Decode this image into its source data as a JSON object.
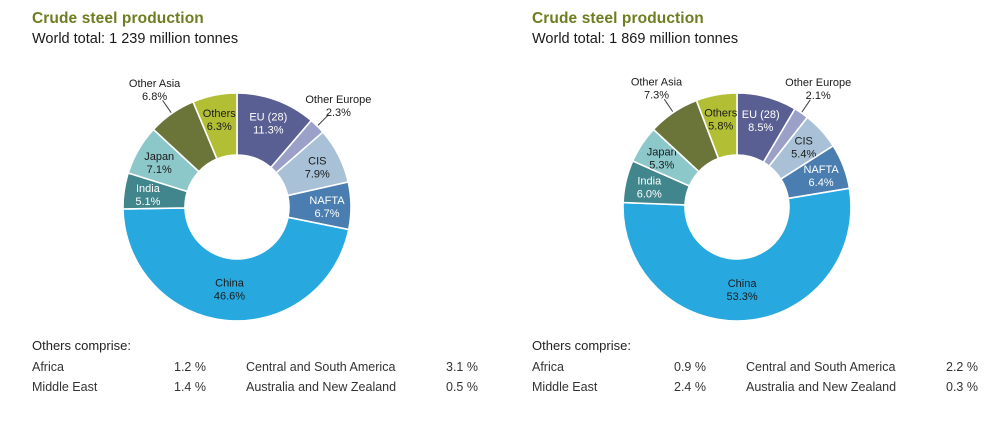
{
  "chart_data": [
    {
      "type": "pie",
      "subtype": "donut",
      "title": "Crude steel production",
      "subtitle": "World total: 1 239 million tonnes",
      "legend_position": "none",
      "others_title": "Others comprise:",
      "slices": [
        {
          "name": "EU (28)",
          "value": 11.3,
          "color": "#5a5f93",
          "text": "#ffffff",
          "label": "inside"
        },
        {
          "name": "Other Europe",
          "value": 2.3,
          "color": "#9aa0c7",
          "text": "#1a1a1a",
          "label": "outside"
        },
        {
          "name": "CIS",
          "value": 7.9,
          "color": "#a8c1d6",
          "text": "#1a1a1a",
          "label": "inside"
        },
        {
          "name": "NAFTA",
          "value": 6.7,
          "color": "#4a7db0",
          "text": "#ffffff",
          "label": "inside"
        },
        {
          "name": "China",
          "value": 46.6,
          "color": "#27a9e0",
          "text": "#1a1a1a",
          "label": "inside",
          "lr": 82
        },
        {
          "name": "India",
          "value": 5.1,
          "color": "#41868c",
          "text": "#ffffff",
          "label": "inside"
        },
        {
          "name": "Japan",
          "value": 7.1,
          "color": "#8cc8ca",
          "text": "#1a1a1a",
          "label": "inside"
        },
        {
          "name": "Other Asia",
          "value": 6.8,
          "color": "#6c7539",
          "text": "#1a1a1a",
          "label": "outside"
        },
        {
          "name": "Others",
          "value": 6.3,
          "color": "#b2bf35",
          "text": "#1a1a1a",
          "label": "inside"
        }
      ],
      "others": [
        {
          "label": "Africa",
          "value": "1.2 %"
        },
        {
          "label": "Middle East",
          "value": "1.4 %"
        },
        {
          "label": "Central and South America",
          "value": "3.1 %"
        },
        {
          "label": "Australia and New Zealand",
          "value": "0.5 %"
        }
      ]
    },
    {
      "type": "pie",
      "subtype": "donut",
      "title": "Crude steel production",
      "subtitle": "World total: 1 869 million tonnes",
      "legend_position": "none",
      "others_title": "Others comprise:",
      "slices": [
        {
          "name": "EU (28)",
          "value": 8.5,
          "color": "#5a5f93",
          "text": "#ffffff",
          "label": "inside"
        },
        {
          "name": "Other Europe",
          "value": 2.1,
          "color": "#9aa0c7",
          "text": "#1a1a1a",
          "label": "outside"
        },
        {
          "name": "CIS",
          "value": 5.4,
          "color": "#a8c1d6",
          "text": "#1a1a1a",
          "label": "inside"
        },
        {
          "name": "NAFTA",
          "value": 6.4,
          "color": "#4a7db0",
          "text": "#ffffff",
          "label": "inside"
        },
        {
          "name": "China",
          "value": 53.3,
          "color": "#27a9e0",
          "text": "#1a1a1a",
          "label": "inside",
          "lr": 82
        },
        {
          "name": "India",
          "value": 6.0,
          "color": "#41868c",
          "text": "#ffffff",
          "label": "inside"
        },
        {
          "name": "Japan",
          "value": 5.3,
          "color": "#8cc8ca",
          "text": "#1a1a1a",
          "label": "inside"
        },
        {
          "name": "Other Asia",
          "value": 7.3,
          "color": "#6c7539",
          "text": "#1a1a1a",
          "label": "outside"
        },
        {
          "name": "Others",
          "value": 5.8,
          "color": "#b2bf35",
          "text": "#1a1a1a",
          "label": "inside"
        }
      ],
      "others": [
        {
          "label": "Africa",
          "value": "0.9 %"
        },
        {
          "label": "Middle East",
          "value": "2.4 %"
        },
        {
          "label": "Central and South America",
          "value": "2.2 %"
        },
        {
          "label": "Australia and New Zealand",
          "value": "0.3 %"
        }
      ]
    }
  ],
  "colors": {
    "title_green": "#6e7d20",
    "china_blue": "#27a9e0",
    "background": "#ffffff"
  }
}
